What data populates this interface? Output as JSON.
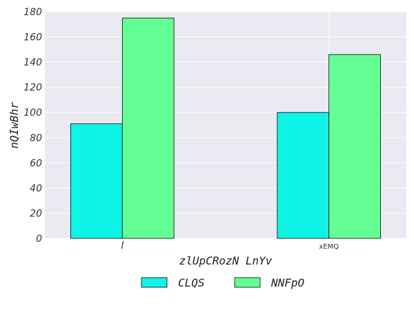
{
  "chart_data": {
    "type": "bar",
    "title": "",
    "xlabel": "zlUpCRozN LnYv",
    "ylabel": "nQIwBhr",
    "categories": [
      "l",
      "xEMQ"
    ],
    "series": [
      {
        "name": "CLQS",
        "values": [
          91,
          100
        ],
        "color": "#0ef5e8"
      },
      {
        "name": "NNFpO",
        "values": [
          175,
          146
        ],
        "color": "#63ff95"
      }
    ],
    "ylim": [
      0,
      180
    ],
    "yticks": [
      0,
      20,
      40,
      60,
      80,
      100,
      120,
      140,
      160,
      180
    ],
    "grid": true,
    "legend_position": "bottom-center",
    "background": "#e9eaf2"
  }
}
